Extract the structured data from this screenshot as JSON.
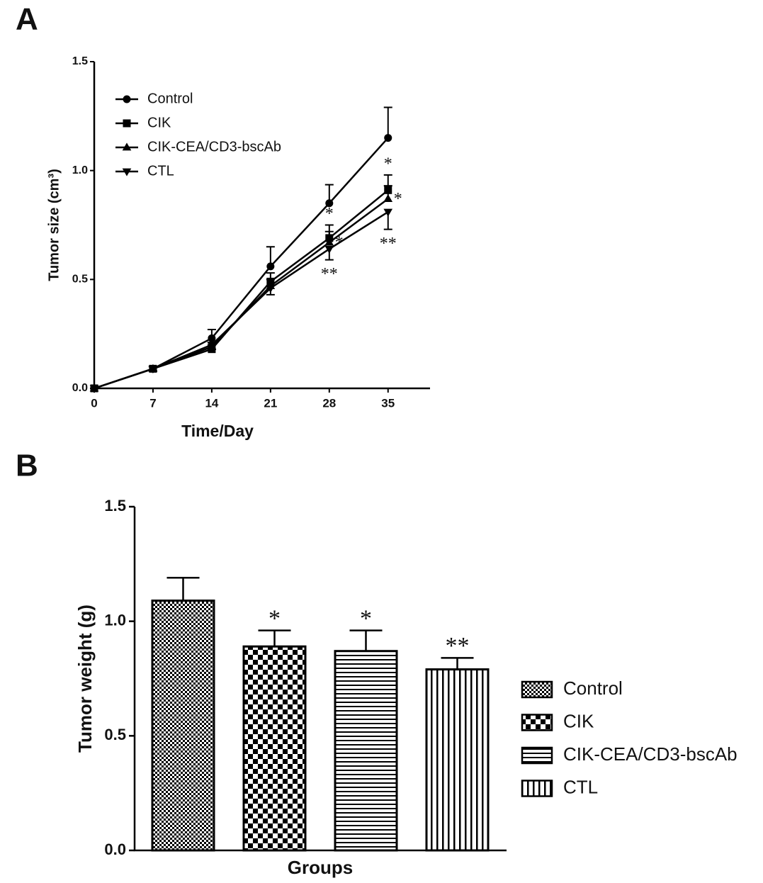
{
  "chart_data": [
    {
      "type": "line",
      "panel": "A",
      "x_label": "Time/Day",
      "y_label": "Tumor size (cm³)",
      "x": [
        0,
        7,
        14,
        21,
        28,
        35
      ],
      "xlim": [
        0,
        40
      ],
      "xticks": [
        0,
        7,
        14,
        21,
        28,
        35
      ],
      "ylim": [
        0,
        1.5
      ],
      "yticks": [
        {
          "value": 0,
          "label": "0.0"
        },
        0.5,
        {
          "value": 1,
          "label": "1.0"
        },
        1.5
      ],
      "legend": "upper left",
      "series": [
        {
          "name": "Control",
          "color": "#000000",
          "marker": "circle",
          "values": [
            0,
            0.09,
            0.23,
            0.56,
            0.85,
            1.15
          ],
          "errors": [
            0,
            0.01,
            0.04,
            0.09,
            0.085,
            0.14
          ],
          "significance": [
            null,
            null,
            null,
            null,
            null,
            null
          ]
        },
        {
          "name": "CIK",
          "color": "#000000",
          "marker": "square",
          "values": [
            0,
            0.09,
            0.18,
            0.49,
            0.69,
            0.91
          ],
          "errors": [
            0,
            0.01,
            0.02,
            0.04,
            0.06,
            0.07
          ],
          "significance": [
            null,
            null,
            null,
            null,
            "*",
            "*"
          ]
        },
        {
          "name": "CIK-CEA/CD3-bscAb",
          "color": "#000000",
          "marker": "triangle-up",
          "values": [
            0,
            0.09,
            0.19,
            0.47,
            0.67,
            0.87
          ],
          "errors": [
            0,
            0.01,
            0.02,
            0.03,
            0.05,
            0.06
          ],
          "significance": [
            null,
            null,
            null,
            null,
            "*",
            "*"
          ]
        },
        {
          "name": "CTL",
          "color": "#000000",
          "marker": "triangle-down",
          "values": [
            0,
            0.09,
            0.2,
            0.46,
            0.64,
            0.81
          ],
          "errors": [
            0,
            0.01,
            0.02,
            0.03,
            0.05,
            0.08
          ],
          "significance": [
            null,
            null,
            null,
            null,
            "**",
            "**"
          ]
        }
      ]
    },
    {
      "type": "bar",
      "panel": "B",
      "x_label": "Groups",
      "y_label": "Tumor weight (g)",
      "categories": [
        "Control",
        "CIK",
        "CIK-CEA/CD3-bscAb",
        "CTL"
      ],
      "values": [
        1.09,
        0.89,
        0.87,
        0.79
      ],
      "errors": [
        0.1,
        0.07,
        0.09,
        0.05
      ],
      "significance": [
        null,
        "*",
        "*",
        "**"
      ],
      "patterns": [
        "fine-check",
        "check",
        "hlines",
        "vlines"
      ],
      "color": "#000000",
      "ylim": [
        0,
        1.5
      ],
      "yticks": [
        {
          "value": 0,
          "label": "0.0"
        },
        0.5,
        {
          "value": 1,
          "label": "1.0"
        },
        1.5
      ],
      "legend": "right"
    }
  ]
}
